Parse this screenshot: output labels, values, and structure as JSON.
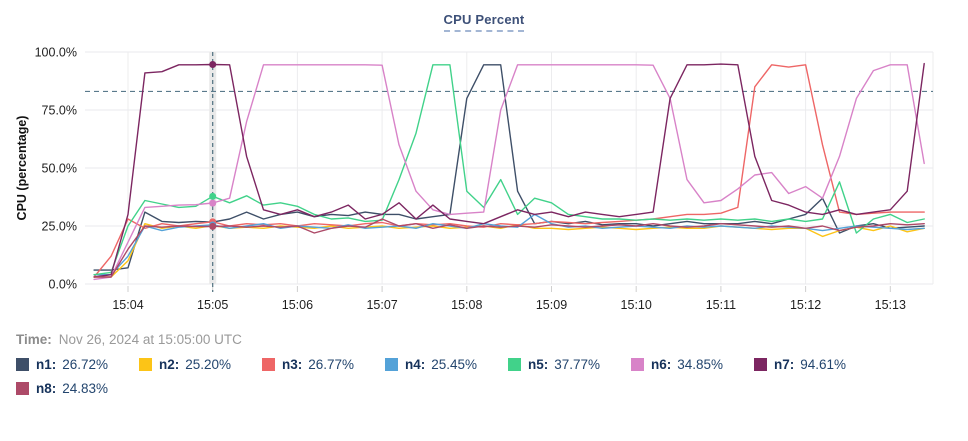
{
  "footer": {
    "time_label": "Time:",
    "time_value": "Nov 26, 2024 at 15:05:00 UTC"
  },
  "chart_data": {
    "type": "line",
    "title": "CPU Percent",
    "ylabel": "CPU (percentage)",
    "ylim": [
      0,
      100
    ],
    "grid": true,
    "legend_position": "bottom",
    "y_tick_values": [
      0,
      25,
      50,
      75,
      100
    ],
    "y_tick_labels": [
      "0.0%",
      "25.0%",
      "50.0%",
      "75.0%",
      "100.0%"
    ],
    "x_tick_values": [
      4,
      5,
      6,
      7,
      8,
      9,
      10,
      11,
      12,
      13
    ],
    "x_tick_labels": [
      "15:04",
      "15:05",
      "15:06",
      "15:07",
      "15:08",
      "15:09",
      "15:10",
      "15:11",
      "15:12",
      "15:13"
    ],
    "threshold_value": 83,
    "crosshair_minute": 5,
    "x_minutes": [
      3.6,
      3.8,
      4,
      4.2,
      4.4,
      4.6,
      4.8,
      5,
      5.2,
      5.4,
      5.6,
      5.8,
      6,
      6.2,
      6.4,
      6.6,
      6.8,
      7,
      7.2,
      7.4,
      7.6,
      7.8,
      8,
      8.2,
      8.4,
      8.6,
      8.8,
      9,
      9.2,
      9.4,
      9.6,
      9.8,
      10,
      10.2,
      10.4,
      10.6,
      10.8,
      11,
      11.2,
      11.4,
      11.6,
      11.8,
      12,
      12.2,
      12.4,
      12.6,
      12.8,
      13,
      13.2,
      13.4
    ],
    "series": [
      {
        "id": "n1",
        "label": "n1",
        "legend_label": "n1:",
        "value": 26.72,
        "value_text": "26.72%",
        "color": "#3e4f68",
        "values": [
          6,
          6,
          7,
          31,
          27,
          26.5,
          27,
          26.7,
          28,
          31,
          28,
          30,
          31,
          29,
          30,
          29.5,
          31,
          30,
          30,
          28,
          29,
          30,
          80,
          94.5,
          94.5,
          40,
          26,
          27,
          26,
          27,
          25.5,
          26,
          26,
          25,
          26,
          27,
          26,
          26,
          26,
          27,
          26,
          28,
          30,
          37,
          22,
          25,
          26,
          24,
          24.5,
          25
        ]
      },
      {
        "id": "n2",
        "label": "n2",
        "legend_label": "n2:",
        "value": 25.2,
        "value_text": "25.20%",
        "color": "#fcc417",
        "values": [
          3,
          3,
          10,
          26,
          24,
          25,
          24,
          25.2,
          24,
          24.5,
          24,
          25,
          24.5,
          24,
          25,
          24,
          24.5,
          25,
          24,
          24.5,
          25,
          24,
          24.5,
          25,
          24,
          25.5,
          24,
          24,
          23.5,
          24,
          24.5,
          24,
          23.5,
          24,
          24.5,
          24,
          24,
          25,
          24.5,
          24,
          23.5,
          24,
          24,
          20.5,
          23,
          24.5,
          23,
          25,
          22.5,
          24
        ]
      },
      {
        "id": "n3",
        "label": "n3",
        "legend_label": "n3:",
        "value": 26.77,
        "value_text": "26.77%",
        "color": "#ee6666",
        "values": [
          3,
          12,
          28,
          24,
          26,
          25,
          26,
          26.8,
          25,
          26,
          25.5,
          26,
          25,
          26,
          25.5,
          25,
          26,
          26.5,
          25,
          26,
          25.5,
          26,
          25,
          24.5,
          26,
          25.5,
          26,
          27,
          26.5,
          26,
          26.5,
          27,
          27.5,
          28,
          29,
          30,
          30,
          30.5,
          33,
          85,
          94.5,
          93.5,
          94.5,
          60,
          31,
          30,
          30.5,
          31,
          31,
          31
        ]
      },
      {
        "id": "n4",
        "label": "n4",
        "legend_label": "n4:",
        "value": 25.45,
        "value_text": "25.45%",
        "color": "#54a2d8",
        "values": [
          4,
          4,
          12,
          25,
          23,
          24.5,
          25,
          25.5,
          24,
          25,
          26,
          24,
          25,
          24.5,
          24,
          25.5,
          24,
          24.5,
          25,
          24,
          26,
          25,
          24,
          26,
          25,
          24.5,
          30,
          26,
          24.5,
          25,
          24,
          24.5,
          25,
          24.5,
          24,
          25,
          24.5,
          25,
          24.5,
          24,
          25,
          24.5,
          24,
          23,
          24,
          25,
          24.5,
          24,
          23.5,
          24
        ]
      },
      {
        "id": "n5",
        "label": "n5",
        "legend_label": "n5:",
        "value": 37.77,
        "value_text": "37.77%",
        "color": "#41d28a",
        "values": [
          4,
          5,
          25,
          36,
          34.5,
          33,
          33.5,
          37.8,
          35,
          38,
          34,
          35,
          33.5,
          30,
          28,
          28.5,
          27,
          27.5,
          45,
          65,
          94.5,
          94.5,
          40,
          33,
          45,
          30,
          37,
          35,
          30,
          29,
          28,
          28,
          27.5,
          28,
          27.5,
          28,
          27.5,
          28,
          27.5,
          28,
          27,
          28,
          27,
          28,
          44,
          22,
          28,
          30,
          26.5,
          28
        ]
      },
      {
        "id": "n6",
        "label": "n6",
        "legend_label": "n6:",
        "value": 34.85,
        "value_text": "34.85%",
        "color": "#d883c8",
        "values": [
          2,
          3,
          18,
          33,
          33.5,
          34,
          34.2,
          34.9,
          37,
          70,
          94.5,
          94.5,
          94.5,
          94.5,
          94.5,
          94.5,
          94.5,
          94.3,
          60,
          40,
          32,
          30,
          30.5,
          31,
          75,
          94.5,
          94.5,
          94.5,
          94.5,
          94.5,
          94.5,
          94.5,
          94.5,
          94.3,
          80,
          45,
          35,
          36,
          41,
          47,
          48,
          39,
          42,
          37,
          55,
          80,
          92,
          94.5,
          94.5,
          52
        ]
      },
      {
        "id": "n7",
        "label": "n7",
        "legend_label": "n7:",
        "value": 94.61,
        "value_text": "94.61%",
        "color": "#7c2661",
        "values": [
          3,
          4,
          30,
          91,
          91.5,
          94.5,
          94.5,
          94.6,
          94.5,
          55,
          32,
          30,
          32,
          29,
          31,
          34,
          28,
          30,
          35,
          28,
          34,
          28,
          27,
          26,
          29,
          32,
          30,
          31,
          29,
          31,
          30,
          29,
          30,
          31,
          80,
          94.5,
          94.5,
          94.8,
          94.5,
          55,
          36,
          34,
          31,
          30,
          32,
          30,
          31,
          32,
          40,
          95
        ]
      },
      {
        "id": "n8",
        "label": "n8",
        "legend_label": "n8:",
        "value": 24.83,
        "value_text": "24.83%",
        "color": "#ad4a68",
        "values": [
          3,
          3,
          15,
          25,
          24.5,
          25,
          24.8,
          24.8,
          25,
          24.5,
          25,
          24.5,
          25,
          22,
          24,
          25,
          24.5,
          28,
          25,
          26,
          24,
          25.5,
          24,
          25,
          24.5,
          25,
          24.5,
          25.5,
          25,
          24.5,
          25,
          25.5,
          25,
          26,
          25,
          24.5,
          25,
          26,
          25.5,
          25,
          24.5,
          25,
          24,
          25,
          23,
          24.5,
          25,
          26,
          25.5,
          26
        ]
      }
    ]
  }
}
